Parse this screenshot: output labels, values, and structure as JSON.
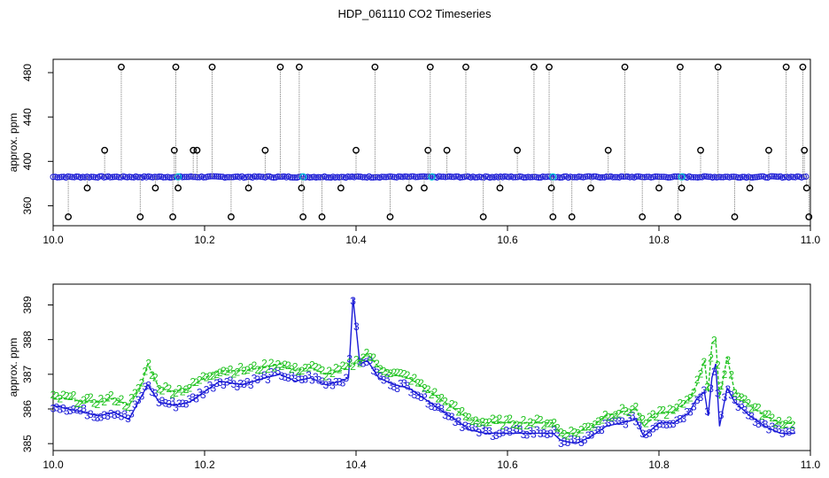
{
  "title": "HDP_061110  CO2 Timeseries",
  "colors": {
    "raw_markers": "#000000",
    "raw_line": "#888888",
    "blue": "#1a1ad6",
    "green": "#22c322",
    "cyan": "#00c8d8"
  },
  "chart_data": [
    {
      "type": "scatter",
      "title": "",
      "xlabel": "",
      "ylabel": "approx. ppm",
      "xlim": [
        10.0,
        11.0
      ],
      "ylim": [
        342,
        492
      ],
      "x_ticks": [
        10.0,
        10.2,
        10.4,
        10.6,
        10.8,
        11.0
      ],
      "x_tick_labels": [
        "10.0",
        "10.2",
        "10.4",
        "10.6",
        "10.8",
        "11.0"
      ],
      "y_ticks": [
        360,
        400,
        440,
        480
      ],
      "y_tick_labels": [
        "360",
        "400",
        "440",
        "480"
      ],
      "grid": false,
      "series": [
        {
          "marker": "circle-black",
          "baseline": 386,
          "outliers": [
            [
              10.02,
              350
            ],
            [
              10.045,
              376
            ],
            [
              10.068,
              410
            ],
            [
              10.09,
              485
            ],
            [
              10.115,
              350
            ],
            [
              10.135,
              376
            ],
            [
              10.158,
              350
            ],
            [
              10.16,
              410
            ],
            [
              10.162,
              485
            ],
            [
              10.165,
              376
            ],
            [
              10.185,
              410
            ],
            [
              10.19,
              410
            ],
            [
              10.21,
              485
            ],
            [
              10.235,
              350
            ],
            [
              10.258,
              376
            ],
            [
              10.28,
              410
            ],
            [
              10.3,
              485
            ],
            [
              10.325,
              485
            ],
            [
              10.328,
              376
            ],
            [
              10.33,
              350
            ],
            [
              10.355,
              350
            ],
            [
              10.38,
              376
            ],
            [
              10.4,
              410
            ],
            [
              10.425,
              485
            ],
            [
              10.445,
              350
            ],
            [
              10.47,
              376
            ],
            [
              10.49,
              376
            ],
            [
              10.495,
              410
            ],
            [
              10.498,
              485
            ],
            [
              10.52,
              410
            ],
            [
              10.545,
              485
            ],
            [
              10.568,
              350
            ],
            [
              10.59,
              376
            ],
            [
              10.613,
              410
            ],
            [
              10.635,
              485
            ],
            [
              10.655,
              485
            ],
            [
              10.658,
              376
            ],
            [
              10.66,
              350
            ],
            [
              10.685,
              350
            ],
            [
              10.71,
              376
            ],
            [
              10.733,
              410
            ],
            [
              10.755,
              485
            ],
            [
              10.778,
              350
            ],
            [
              10.8,
              376
            ],
            [
              10.825,
              350
            ],
            [
              10.828,
              485
            ],
            [
              10.83,
              376
            ],
            [
              10.855,
              410
            ],
            [
              10.878,
              485
            ],
            [
              10.9,
              350
            ],
            [
              10.92,
              376
            ],
            [
              10.945,
              410
            ],
            [
              10.968,
              485
            ],
            [
              10.99,
              485
            ],
            [
              10.992,
              410
            ],
            [
              10.995,
              376
            ],
            [
              10.998,
              350
            ]
          ]
        }
      ]
    },
    {
      "type": "line",
      "title": "",
      "xlabel": "",
      "ylabel": "approx. ppm",
      "xlim": [
        10.0,
        11.0
      ],
      "ylim": [
        384.8,
        389.6
      ],
      "x_ticks": [
        10.0,
        10.2,
        10.4,
        10.6,
        10.8,
        11.0
      ],
      "x_tick_labels": [
        "10.0",
        "10.2",
        "10.4",
        "10.6",
        "10.8",
        "11.0"
      ],
      "y_ticks": [
        385,
        386,
        387,
        388,
        389
      ],
      "y_tick_labels": [
        "385",
        "386",
        "387",
        "388",
        "389"
      ],
      "grid": false,
      "series": [
        {
          "marker_label": "3",
          "color": "blue",
          "x": [
            10.0,
            10.02,
            10.04,
            10.06,
            10.08,
            10.1,
            10.115,
            10.125,
            10.14,
            10.16,
            10.18,
            10.2,
            10.22,
            10.25,
            10.28,
            10.3,
            10.32,
            10.34,
            10.36,
            10.38,
            10.39,
            10.396,
            10.405,
            10.415,
            10.43,
            10.45,
            10.47,
            10.49,
            10.51,
            10.53,
            10.55,
            10.57,
            10.6,
            10.63,
            10.66,
            10.67,
            10.69,
            10.71,
            10.73,
            10.75,
            10.77,
            10.78,
            10.8,
            10.82,
            10.84,
            10.85,
            10.86,
            10.865,
            10.87,
            10.875,
            10.88,
            10.89,
            10.9,
            10.92,
            10.94,
            10.96,
            10.98
          ],
          "values": [
            386.1,
            386.0,
            385.9,
            385.8,
            385.9,
            385.7,
            386.3,
            386.7,
            386.2,
            386.1,
            386.2,
            386.5,
            386.8,
            386.7,
            386.9,
            387.0,
            386.8,
            386.9,
            386.7,
            386.8,
            386.9,
            389.2,
            387.3,
            387.4,
            386.9,
            386.7,
            386.6,
            386.3,
            386.0,
            385.7,
            385.4,
            385.3,
            385.3,
            385.3,
            385.3,
            385.1,
            385.0,
            385.2,
            385.5,
            385.6,
            385.7,
            385.2,
            385.6,
            385.6,
            385.9,
            386.3,
            386.5,
            385.8,
            386.9,
            387.3,
            385.5,
            386.6,
            386.2,
            385.8,
            385.5,
            385.3,
            385.3
          ]
        },
        {
          "marker_label": "2",
          "color": "green",
          "x": [
            10.0,
            10.02,
            10.04,
            10.06,
            10.08,
            10.1,
            10.115,
            10.125,
            10.14,
            10.16,
            10.18,
            10.2,
            10.22,
            10.25,
            10.28,
            10.3,
            10.32,
            10.34,
            10.36,
            10.38,
            10.39,
            10.405,
            10.415,
            10.43,
            10.45,
            10.47,
            10.49,
            10.51,
            10.53,
            10.55,
            10.57,
            10.6,
            10.63,
            10.66,
            10.67,
            10.69,
            10.71,
            10.73,
            10.75,
            10.77,
            10.78,
            10.8,
            10.82,
            10.84,
            10.85,
            10.86,
            10.865,
            10.87,
            10.875,
            10.88,
            10.89,
            10.9,
            10.92,
            10.94,
            10.96,
            10.98
          ],
          "values": [
            386.3,
            386.3,
            386.2,
            386.2,
            386.3,
            386.1,
            386.6,
            387.3,
            386.6,
            386.5,
            386.6,
            386.9,
            387.1,
            387.1,
            387.2,
            387.3,
            387.1,
            387.2,
            387.0,
            387.1,
            387.2,
            387.4,
            387.6,
            387.2,
            387.0,
            386.9,
            386.6,
            386.3,
            386.0,
            385.7,
            385.6,
            385.6,
            385.6,
            385.6,
            385.3,
            385.3,
            385.5,
            385.8,
            385.9,
            386.0,
            385.5,
            385.9,
            385.9,
            386.3,
            386.7,
            387.4,
            386.5,
            387.9,
            388.0,
            386.3,
            387.5,
            386.5,
            386.1,
            385.8,
            385.6,
            385.6
          ]
        }
      ]
    }
  ]
}
